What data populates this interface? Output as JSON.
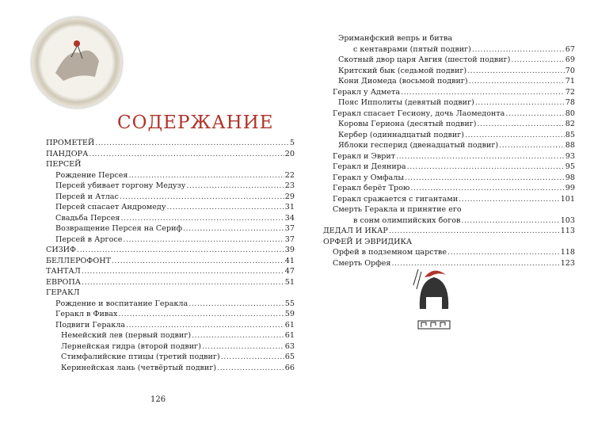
{
  "title": "СОДЕРЖАНИЕ",
  "page_number": "126",
  "left": [
    {
      "text": "ПРОМЕТЕЙ",
      "page": "5",
      "level": 0
    },
    {
      "text": "ПАНДОРА",
      "page": "20",
      "level": 0
    },
    {
      "text": "ПЕРСЕЙ",
      "page": "",
      "level": 0
    },
    {
      "text": "Рождение Персея",
      "page": "22",
      "level": 1
    },
    {
      "text": "Персей убивает горгону Медузу",
      "page": "23",
      "level": 1
    },
    {
      "text": "Персей и Атлас",
      "page": "29",
      "level": 1
    },
    {
      "text": "Персей спасает Андромеду",
      "page": "31",
      "level": 1
    },
    {
      "text": "Свадьба Персея",
      "page": "34",
      "level": 1
    },
    {
      "text": "Возвращение Персея на Сериф",
      "page": "37",
      "level": 1
    },
    {
      "text": "Персей в Аргосе",
      "page": "37",
      "level": 1
    },
    {
      "text": "СИЗИФ",
      "page": "39",
      "level": 0
    },
    {
      "text": "БЕЛЛЕРОФОНТ",
      "page": "41",
      "level": 0
    },
    {
      "text": "ТАНТАЛ",
      "page": "47",
      "level": 0
    },
    {
      "text": "ЕВРОПА",
      "page": "51",
      "level": 0
    },
    {
      "text": "ГЕРАКЛ",
      "page": "",
      "level": 0
    },
    {
      "text": "Рождение и воспитание Геракла",
      "page": "55",
      "level": 1
    },
    {
      "text": "Геракл в Фивах",
      "page": "59",
      "level": 1
    },
    {
      "text": "Подвиги Геракла",
      "page": "61",
      "level": 1
    },
    {
      "text": "Немейский лев (первый подвиг)",
      "page": "61",
      "level": 2
    },
    {
      "text": "Лернейская гидра (второй подвиг)",
      "page": "63",
      "level": 2
    },
    {
      "text": "Стимфалийские птицы (третий подвиг)",
      "page": "65",
      "level": 2
    },
    {
      "text": "Керинейская лань (четвёртый подвиг)",
      "page": "66",
      "level": 2
    }
  ],
  "right": [
    {
      "text": "Эриманфский вепрь и битва",
      "page": "",
      "level": 2
    },
    {
      "text": "с кентаврами (пятый подвиг)",
      "page": "67",
      "level": 3
    },
    {
      "text": "Скотный двор царя Авгия (шестой подвиг)",
      "page": "69",
      "level": 2
    },
    {
      "text": "Критский бык (седьмой подвиг)",
      "page": "70",
      "level": 2
    },
    {
      "text": "Кони Диомеда (восьмой подвиг)",
      "page": "71",
      "level": 2
    },
    {
      "text": "Геракл у Адмета",
      "page": "72",
      "level": 1
    },
    {
      "text": "Пояс Ипполиты (девятый подвиг)",
      "page": "78",
      "level": 2
    },
    {
      "text": "Геракл спасает Гесиону, дочь Лаомедонта",
      "page": "80",
      "level": 1
    },
    {
      "text": "Коровы Гериона (десятый подвиг)",
      "page": "82",
      "level": 2
    },
    {
      "text": "Кербер (одиннадцатый подвиг)",
      "page": "85",
      "level": 2
    },
    {
      "text": "Яблоки гесперид (двенадцатый подвиг)",
      "page": "88",
      "level": 2
    },
    {
      "text": "Геракл и Эврит",
      "page": "93",
      "level": 1
    },
    {
      "text": "Геракл и Деянира",
      "page": "95",
      "level": 1
    },
    {
      "text": "Геракл у Омфалы",
      "page": "98",
      "level": 1
    },
    {
      "text": "Геракл берёт Трою",
      "page": "99",
      "level": 1
    },
    {
      "text": "Геракл сражается с гигантами",
      "page": "101",
      "level": 1
    },
    {
      "text": "Смерть Геракла и принятие его",
      "page": "",
      "level": 1
    },
    {
      "text": "в сонм олимпийских богов",
      "page": "103",
      "level": 3
    },
    {
      "text": "ДЕДАЛ И ИКАР",
      "page": "113",
      "level": 0
    },
    {
      "text": "ОРФЕЙ И ЭВРИДИКА",
      "page": "",
      "level": 0
    },
    {
      "text": "Орфей в подземном царстве",
      "page": "118",
      "level": 1
    },
    {
      "text": "Смерть Орфея",
      "page": "123",
      "level": 1
    }
  ]
}
